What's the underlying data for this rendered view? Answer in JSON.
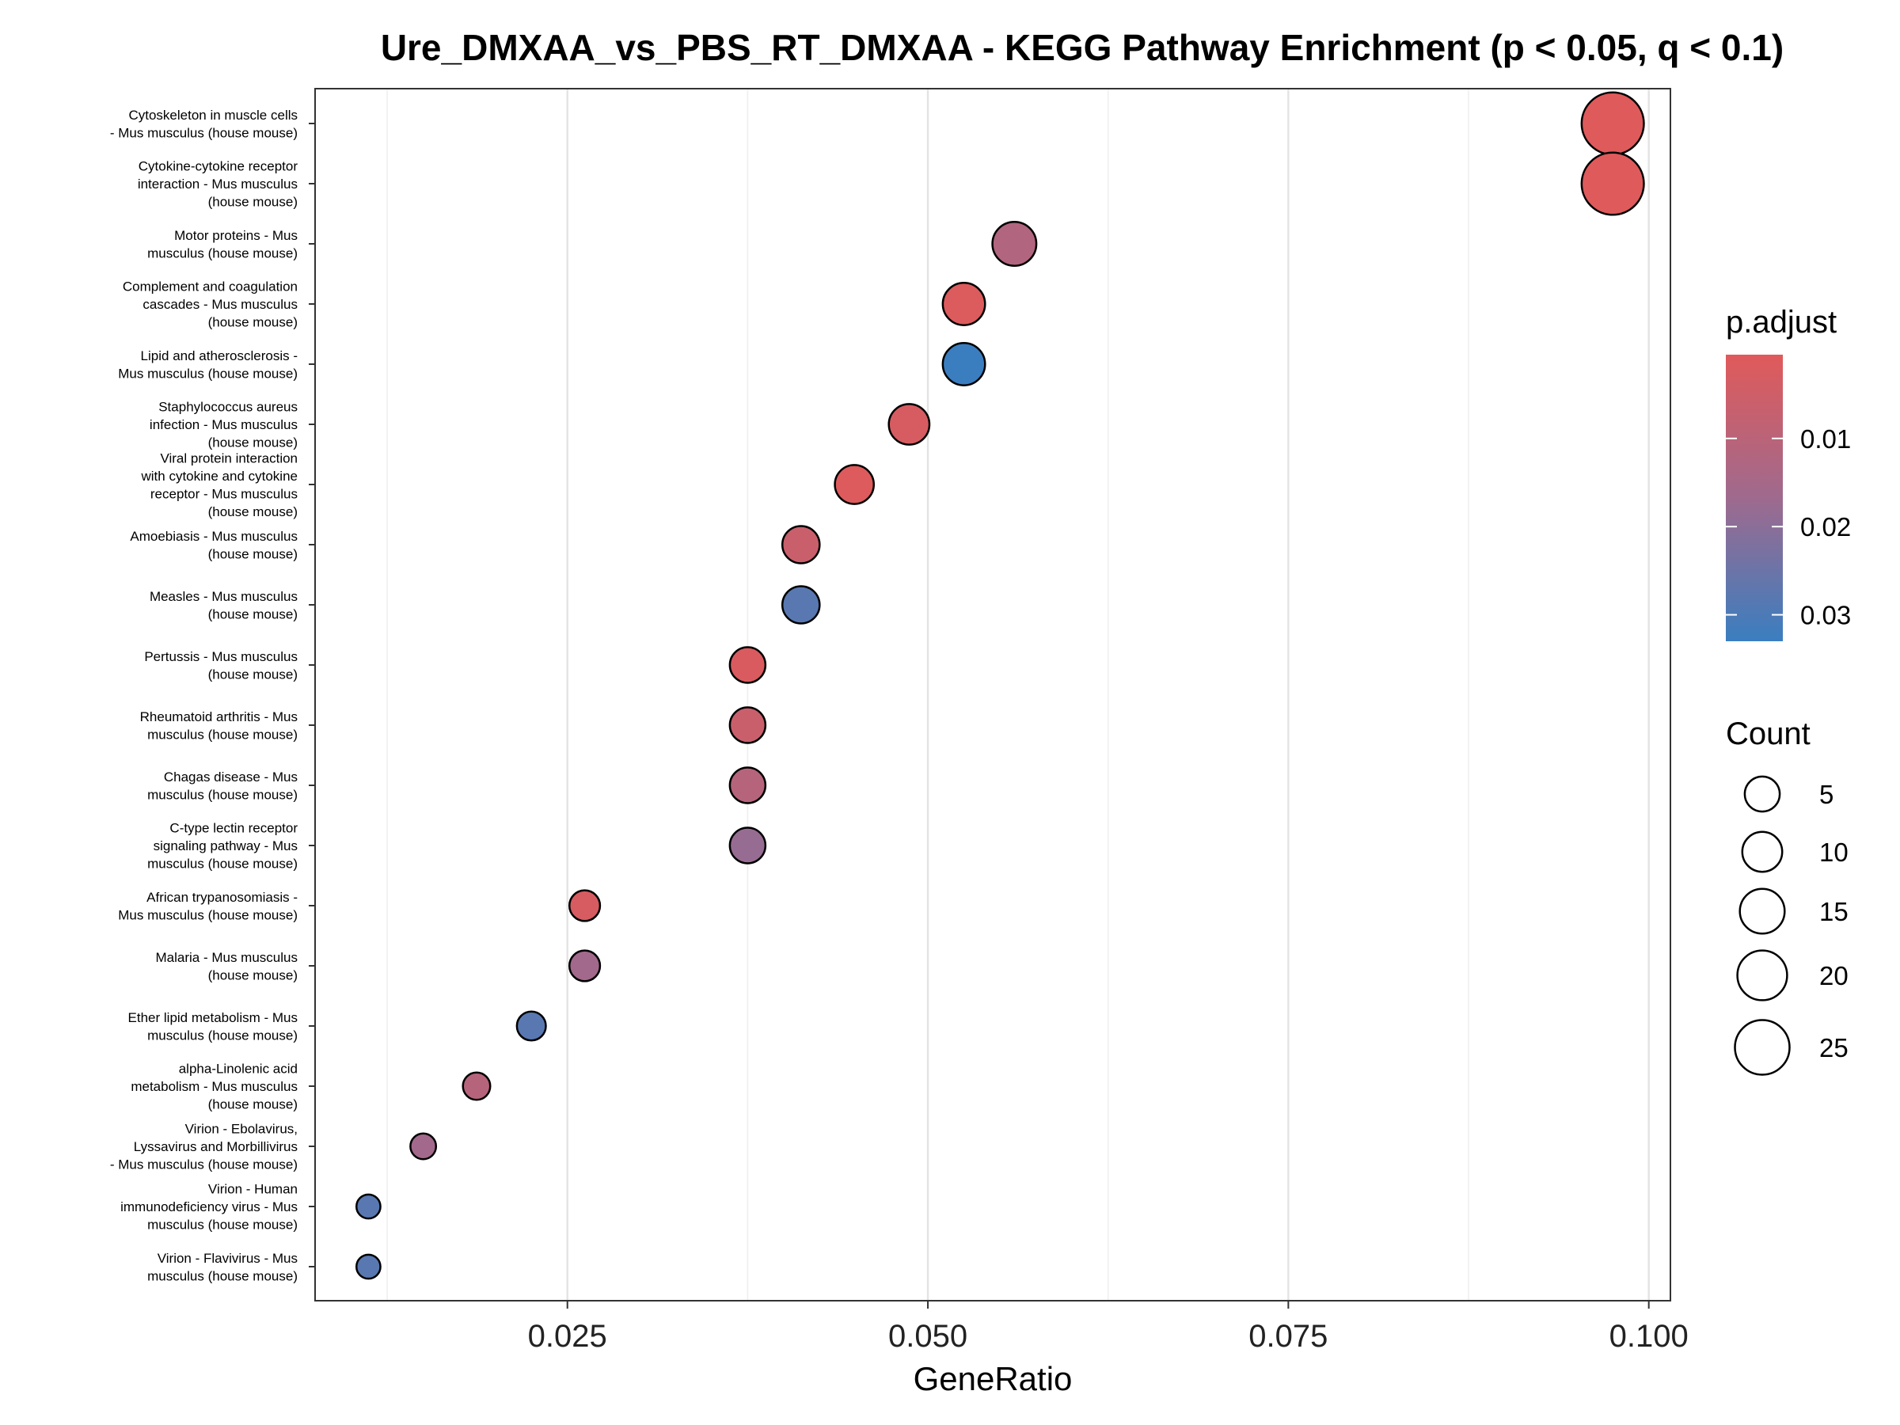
{
  "chart_data": {
    "type": "scatter",
    "title": "Ure_DMXAA_vs_PBS_RT_DMXAA - KEGG Pathway Enrichment (p < 0.05, q < 0.1)",
    "xlabel": "GeneRatio",
    "ylabel": "",
    "xlim": [
      0.0075,
      0.1015
    ],
    "x_ticks": [
      0.025,
      0.05,
      0.075,
      0.1
    ],
    "x_tick_labels": [
      "0.025",
      "0.050",
      "0.075",
      "0.100"
    ],
    "grid": true,
    "color_scale": {
      "title": "p.adjust",
      "low_color": "#E05A5A",
      "mid_color": "#9F6A8E",
      "high_color": "#3A7EC0",
      "range": [
        0.0005,
        0.033
      ],
      "ticks": [
        0.01,
        0.02,
        0.03
      ],
      "tick_labels": [
        "0.01",
        "0.02",
        "0.03"
      ]
    },
    "size_scale": {
      "title": "Count",
      "ticks": [
        5,
        10,
        15,
        20,
        25
      ],
      "tick_labels": [
        "5",
        "10",
        "15",
        "20",
        "25"
      ],
      "range": [
        3,
        26
      ]
    },
    "points": [
      {
        "pathway": [
          "Cytoskeleton in muscle cells",
          "- Mus musculus (house mouse)"
        ],
        "x": 0.0975,
        "count": 26,
        "p_adjust": 0.0008
      },
      {
        "pathway": [
          "Cytokine-cytokine receptor",
          "interaction - Mus musculus",
          "(house mouse)"
        ],
        "x": 0.0975,
        "count": 26,
        "p_adjust": 0.0008
      },
      {
        "pathway": [
          "Motor proteins - Mus",
          "musculus (house mouse)"
        ],
        "x": 0.056,
        "count": 15,
        "p_adjust": 0.012
      },
      {
        "pathway": [
          "Complement and coagulation",
          "cascades - Mus musculus",
          "(house mouse)"
        ],
        "x": 0.0525,
        "count": 14,
        "p_adjust": 0.0015
      },
      {
        "pathway": [
          "Lipid and atherosclerosis -",
          "Mus musculus (house mouse)"
        ],
        "x": 0.0525,
        "count": 14,
        "p_adjust": 0.033
      },
      {
        "pathway": [
          "Staphylococcus aureus",
          "infection - Mus musculus",
          "(house mouse)"
        ],
        "x": 0.0487,
        "count": 13,
        "p_adjust": 0.003
      },
      {
        "pathway": [
          "Viral protein interaction",
          "with cytokine and cytokine",
          "receptor - Mus musculus",
          "(house mouse)"
        ],
        "x": 0.0449,
        "count": 12,
        "p_adjust": 0.0012
      },
      {
        "pathway": [
          "Amoebiasis - Mus musculus",
          "(house mouse)"
        ],
        "x": 0.0412,
        "count": 11,
        "p_adjust": 0.006
      },
      {
        "pathway": [
          "Measles - Mus musculus",
          "(house mouse)"
        ],
        "x": 0.0412,
        "count": 11,
        "p_adjust": 0.028
      },
      {
        "pathway": [
          "Pertussis - Mus musculus",
          "(house mouse)"
        ],
        "x": 0.0375,
        "count": 10,
        "p_adjust": 0.002
      },
      {
        "pathway": [
          "Rheumatoid arthritis - Mus",
          "musculus (house mouse)"
        ],
        "x": 0.0375,
        "count": 10,
        "p_adjust": 0.006
      },
      {
        "pathway": [
          "Chagas disease - Mus",
          "musculus (house mouse)"
        ],
        "x": 0.0375,
        "count": 10,
        "p_adjust": 0.011
      },
      {
        "pathway": [
          "C-type lectin receptor",
          "signaling pathway - Mus",
          "musculus (house mouse)"
        ],
        "x": 0.0375,
        "count": 10,
        "p_adjust": 0.018
      },
      {
        "pathway": [
          "African trypanosomiasis -",
          "Mus musculus (house mouse)"
        ],
        "x": 0.0262,
        "count": 7,
        "p_adjust": 0.003
      },
      {
        "pathway": [
          "Malaria - Mus musculus",
          "(house mouse)"
        ],
        "x": 0.0262,
        "count": 7,
        "p_adjust": 0.016
      },
      {
        "pathway": [
          "Ether lipid metabolism - Mus",
          "musculus (house mouse)"
        ],
        "x": 0.0225,
        "count": 6,
        "p_adjust": 0.028
      },
      {
        "pathway": [
          "alpha-Linolenic acid",
          "metabolism - Mus musculus",
          "(house mouse)"
        ],
        "x": 0.0187,
        "count": 5,
        "p_adjust": 0.011
      },
      {
        "pathway": [
          "Virion - Ebolavirus,",
          "Lyssavirus and Morbillivirus",
          "- Mus musculus (house mouse)"
        ],
        "x": 0.015,
        "count": 4,
        "p_adjust": 0.016
      },
      {
        "pathway": [
          "Virion - Human",
          "immunodeficiency virus - Mus",
          "musculus (house mouse)"
        ],
        "x": 0.0112,
        "count": 3,
        "p_adjust": 0.028
      },
      {
        "pathway": [
          "Virion - Flavivirus - Mus",
          "musculus (house mouse)"
        ],
        "x": 0.0112,
        "count": 3,
        "p_adjust": 0.028
      }
    ]
  }
}
